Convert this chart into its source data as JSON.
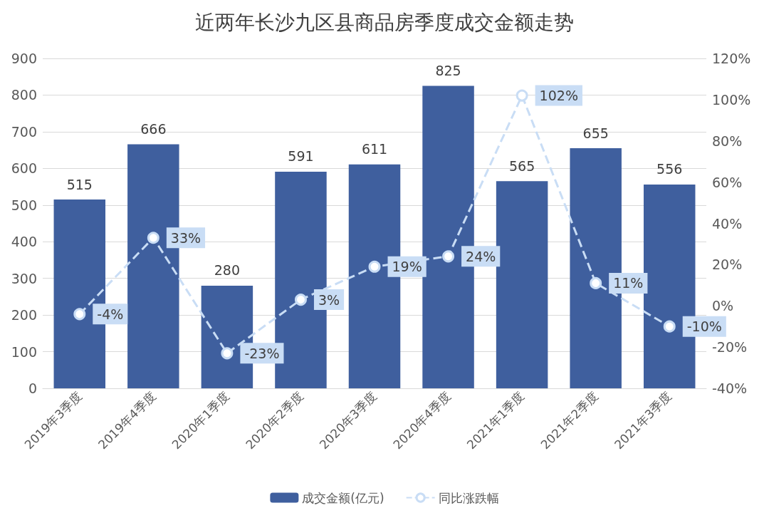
{
  "chart_data": {
    "type": "bar",
    "title": "近两年长沙九区县商品房季度成交金额走势",
    "categories": [
      "2019年3季度",
      "2019年4季度",
      "2020年1季度",
      "2020年2季度",
      "2020年3季度",
      "2020年4季度",
      "2021年1季度",
      "2021年2季度",
      "2021年3季度"
    ],
    "series": [
      {
        "name": "成交金额(亿元)",
        "color": "#3f5f9e",
        "values": [
          515,
          666,
          280,
          591,
          611,
          825,
          565,
          655,
          556
        ],
        "value_labels": [
          "515",
          "666",
          "280",
          "591",
          "611",
          "825",
          "565",
          "655",
          "556"
        ]
      },
      {
        "name": "同比涨跌幅",
        "type": "line",
        "axis": "y2",
        "color": "#c9ddf5",
        "marker": "circle",
        "line_style": "dashed",
        "values": [
          -4,
          33,
          -23,
          3,
          19,
          24,
          102,
          11,
          -10
        ],
        "value_labels": [
          "-4%",
          "33%",
          "-23%",
          "3%",
          "19%",
          "24%",
          "102%",
          "11%",
          "-10%"
        ]
      }
    ],
    "ylim": [
      0,
      900
    ],
    "yticks": [
      0,
      100,
      200,
      300,
      400,
      500,
      600,
      700,
      800,
      900
    ],
    "y2lim": [
      -40,
      120
    ],
    "y2ticks": [
      {
        "value": -40,
        "label": "-40%"
      },
      {
        "value": -20,
        "label": "-20%"
      },
      {
        "value": 0,
        "label": "0%"
      },
      {
        "value": 20,
        "label": "20%"
      },
      {
        "value": 40,
        "label": "40%"
      },
      {
        "value": 60,
        "label": "60%"
      },
      {
        "value": 80,
        "label": "80%"
      },
      {
        "value": 100,
        "label": "100%"
      },
      {
        "value": 120,
        "label": "120%"
      }
    ],
    "grid": "y",
    "legend": "bottom"
  }
}
